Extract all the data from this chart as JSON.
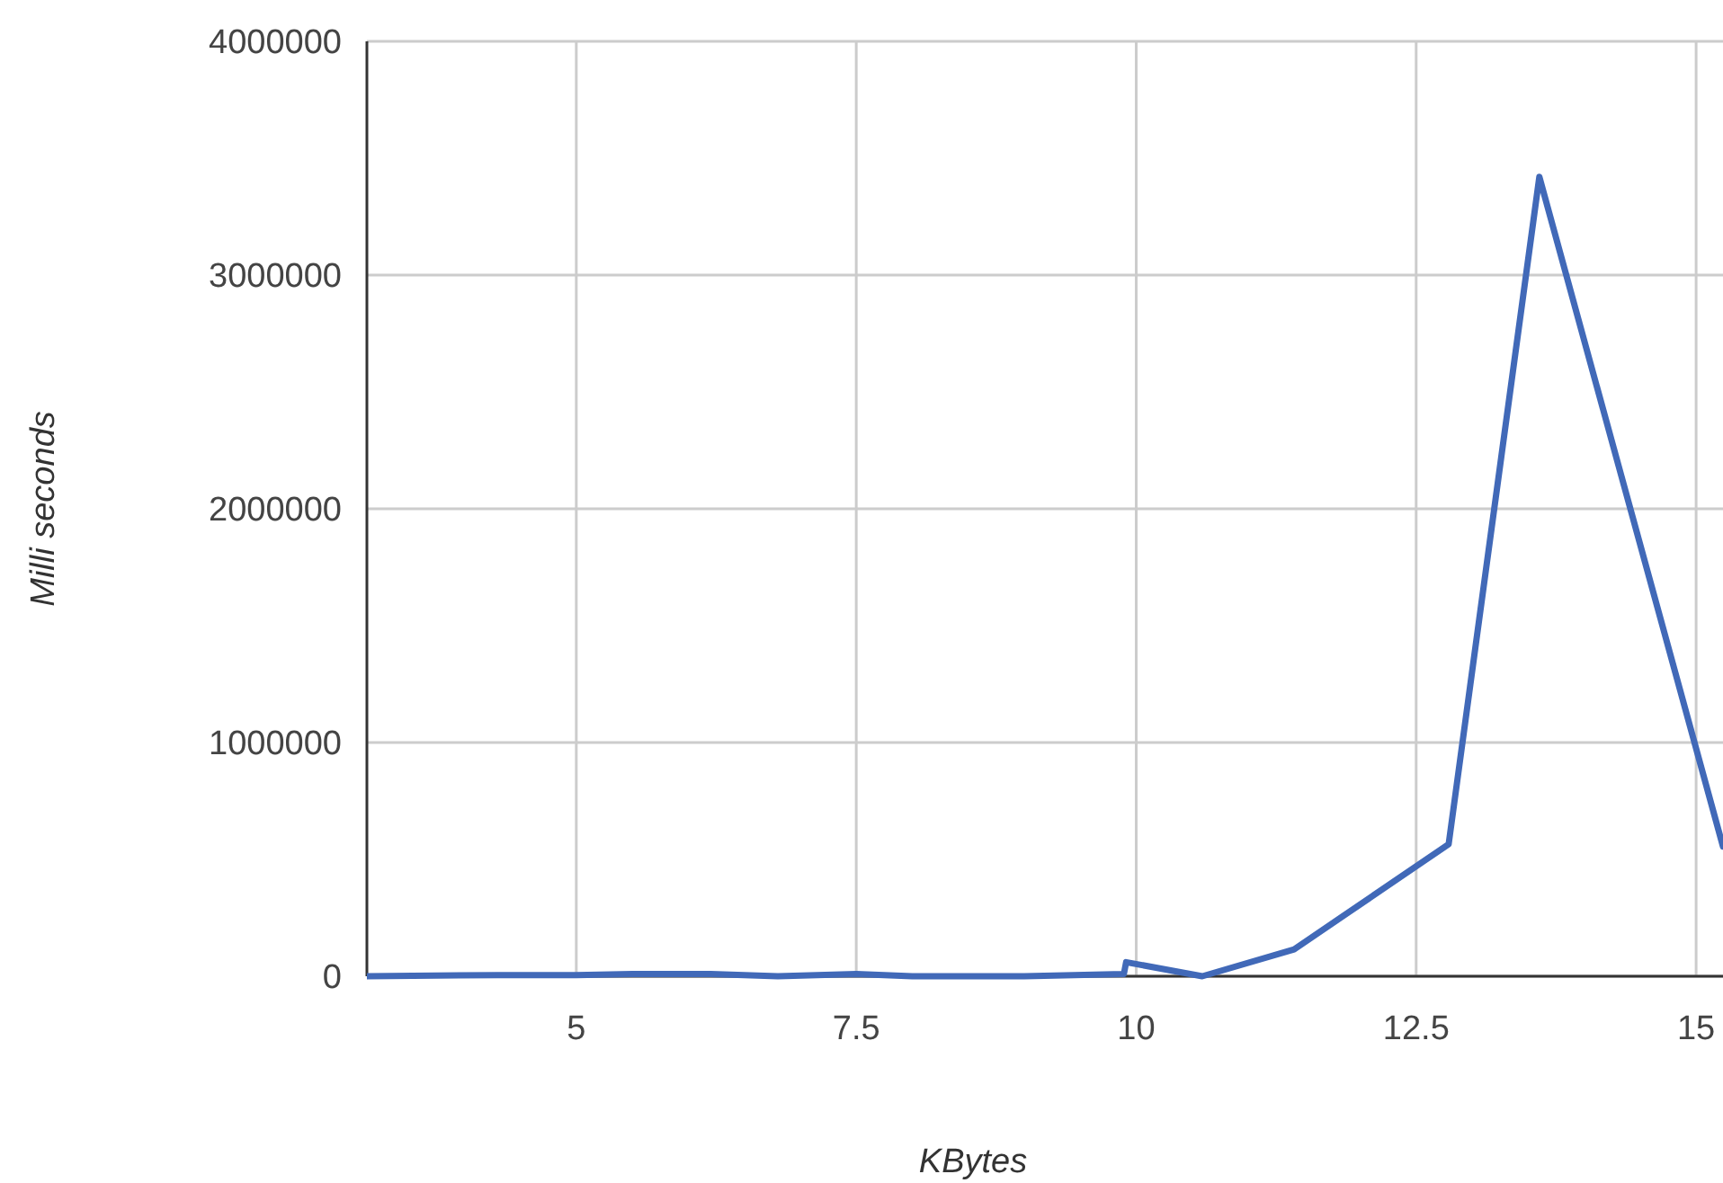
{
  "chart_data": {
    "type": "line",
    "xlabel": "KBytes",
    "ylabel": "Milli seconds",
    "x": [
      3.13,
      4.3,
      5.0,
      5.5,
      6.2,
      6.8,
      7.5,
      8.0,
      9.0,
      9.89,
      9.91,
      10.59,
      11.41,
      12.79,
      13.6,
      15.24
    ],
    "series": [
      {
        "color": "#4169b8",
        "values": [
          0,
          5000,
          5000,
          10000,
          10000,
          0,
          10000,
          0,
          0,
          10000,
          60000,
          0,
          115000,
          565000,
          3420000,
          555000
        ]
      }
    ],
    "xlim": [
      3.13,
      15.24
    ],
    "xticks": [
      5,
      7.5,
      10,
      12.5,
      15
    ],
    "ylim": [
      0,
      4000000
    ],
    "yticks": [
      0,
      1000000,
      2000000,
      3000000,
      4000000
    ],
    "grid": true,
    "marker": "none",
    "line_style": "solid"
  }
}
